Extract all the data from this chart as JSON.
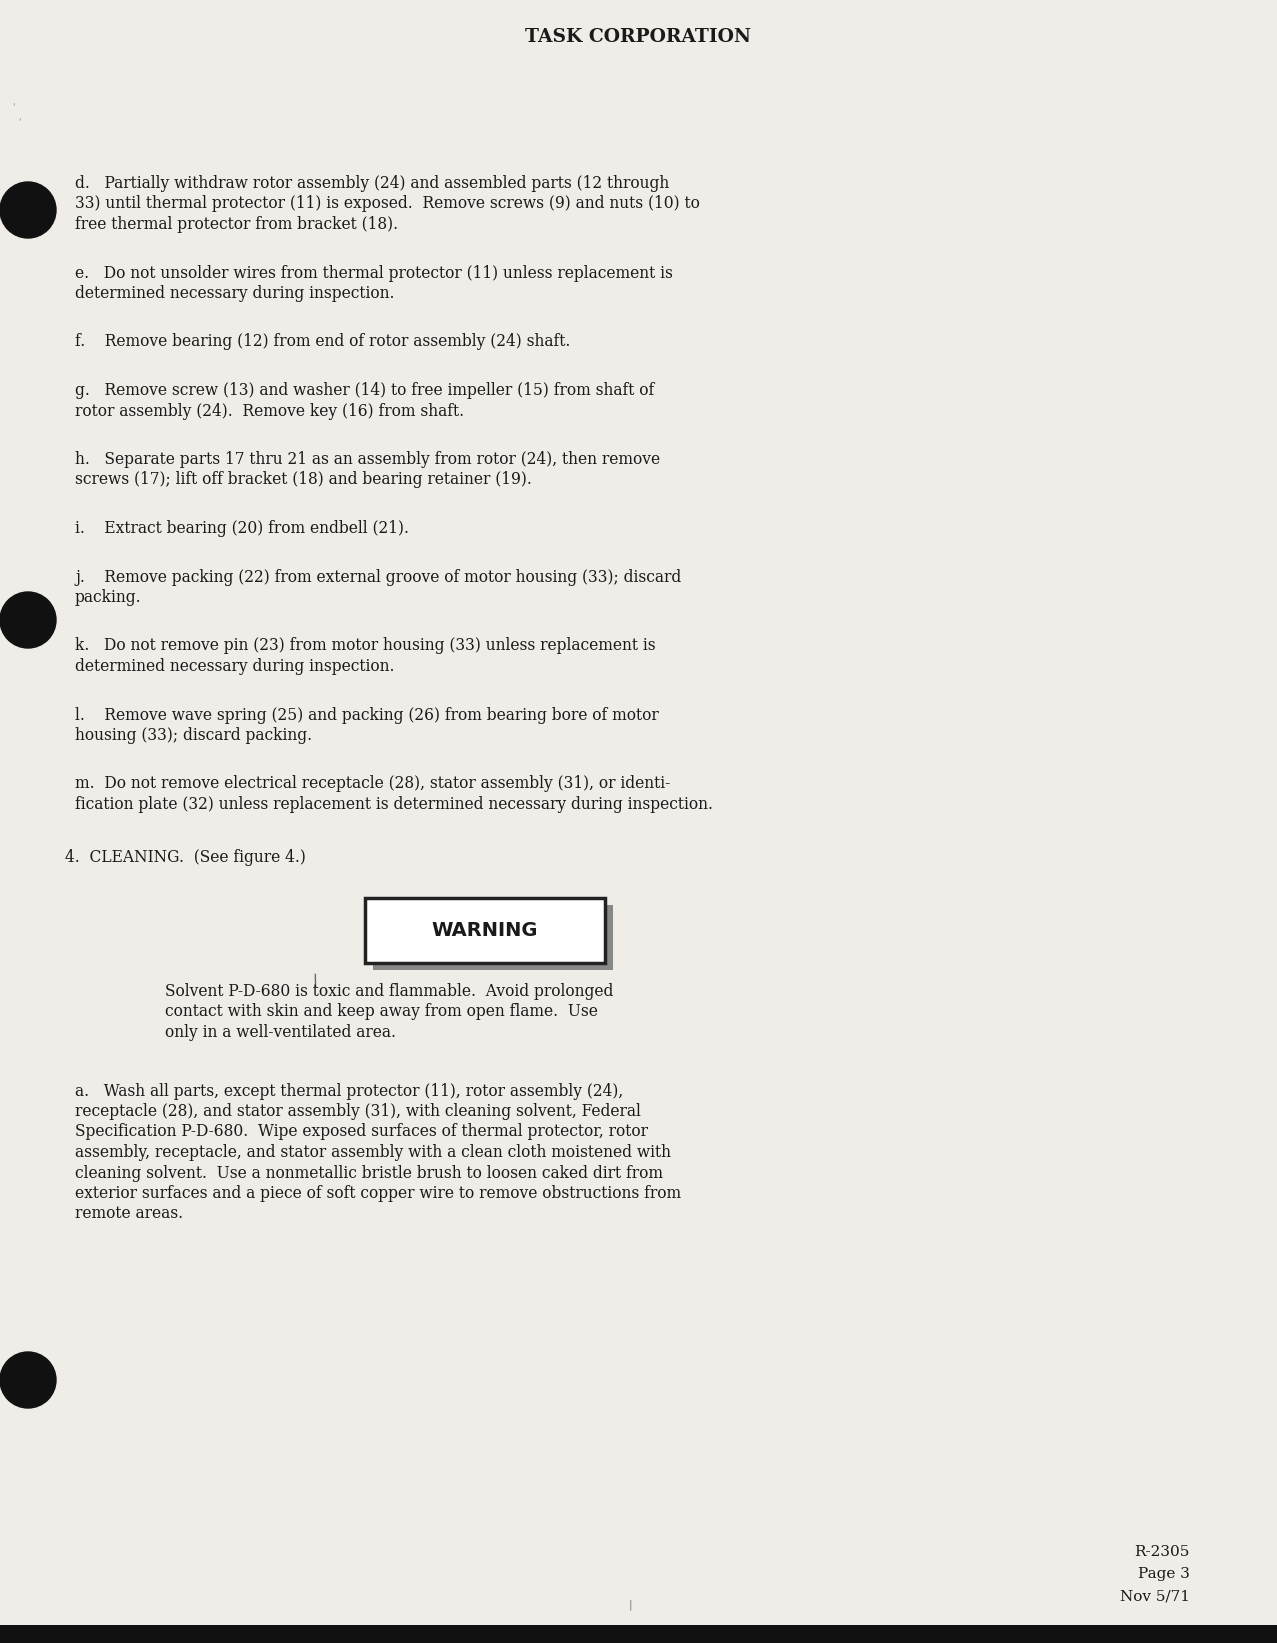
{
  "background_color": "#f0ede8",
  "header_text": "TASK CORPORATION",
  "footer_right": [
    "R-2305",
    "Page 3",
    "Nov 5/71"
  ],
  "body_paragraphs": [
    {
      "label": "d.",
      "lines": [
        "d.   Partially withdraw rotor assembly (24) and assembled parts (12 through",
        "33) until thermal protector (11) is exposed.  Remove screws (9) and nuts (10) to",
        "free thermal protector from bracket (18)."
      ]
    },
    {
      "label": "e.",
      "lines": [
        "e.   Do not unsolder wires from thermal protector (11) unless replacement is",
        "determined necessary during inspection."
      ]
    },
    {
      "label": "f.",
      "lines": [
        "f.    Remove bearing (12) from end of rotor assembly (24) shaft."
      ]
    },
    {
      "label": "g.",
      "lines": [
        "g.   Remove screw (13) and washer (14) to free impeller (15) from shaft of",
        "rotor assembly (24).  Remove key (16) from shaft."
      ]
    },
    {
      "label": "h.",
      "lines": [
        "h.   Separate parts 17 thru 21 as an assembly from rotor (24), then remove",
        "screws (17); lift off bracket (18) and bearing retainer (19)."
      ]
    },
    {
      "label": "i.",
      "lines": [
        "i.    Extract bearing (20) from endbell (21)."
      ]
    },
    {
      "label": "j.",
      "lines": [
        "j.    Remove packing (22) from external groove of motor housing (33); discard",
        "packing."
      ]
    },
    {
      "label": "k.",
      "lines": [
        "k.   Do not remove pin (23) from motor housing (33) unless replacement is",
        "determined necessary during inspection."
      ]
    },
    {
      "label": "l.",
      "lines": [
        "l.    Remove wave spring (25) and packing (26) from bearing bore of motor",
        "housing (33); discard packing."
      ]
    },
    {
      "label": "m.",
      "lines": [
        "m.  Do not remove electrical receptacle (28), stator assembly (31), or identi-",
        "fication plate (32) unless replacement is determined necessary during inspection."
      ]
    }
  ],
  "section4_header": "4.  CLEANING.  (See figure 4.)",
  "warning_box_text": "WARNING",
  "warning_lines": [
    "Solvent P-D-680 is toxic and flammable.  Avoid prolonged",
    "contact with skin and keep away from open flame.  Use",
    "only in a well-ventilated area."
  ],
  "section4a_lines": [
    "a.   Wash all parts, except thermal protector (11), rotor assembly (24),",
    "receptacle (28), and stator assembly (31), with cleaning solvent, Federal",
    "Specification P-D-680.  Wipe exposed surfaces of thermal protector, rotor",
    "assembly, receptacle, and stator assembly with a clean cloth moistened with",
    "cleaning solvent.  Use a nonmetallic bristle brush to loosen caked dirt from",
    "exterior surfaces and a piece of soft copper wire to remove obstructions from",
    "remote areas."
  ],
  "text_color": "#1a1a1a",
  "warning_box_fill": "#ffffff",
  "warning_box_border": "#222222",
  "warning_shadow_color": "#888888"
}
